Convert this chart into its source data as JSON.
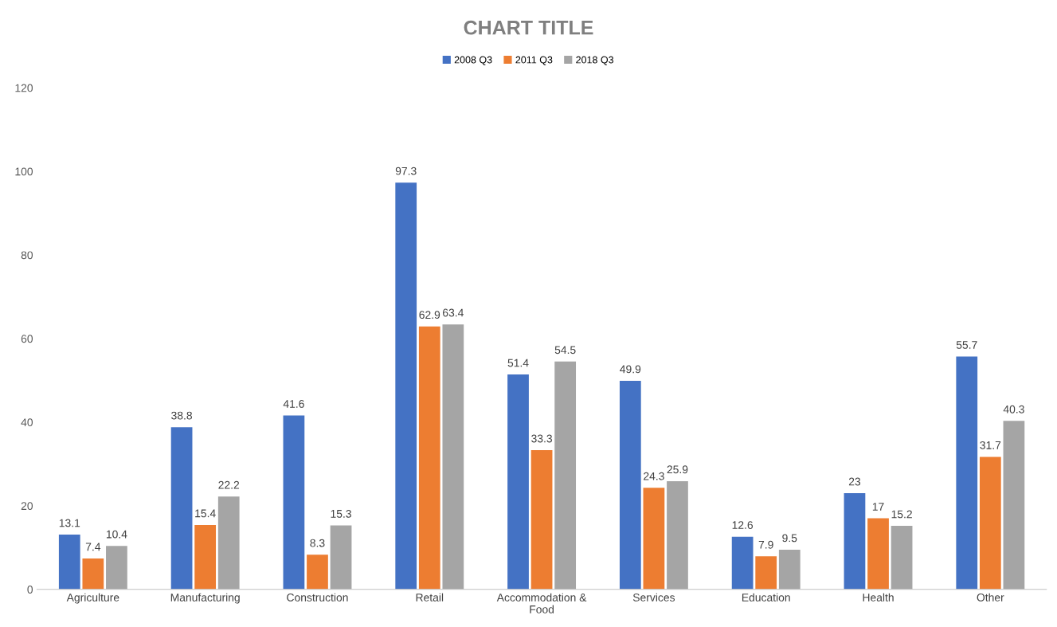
{
  "chart_data": {
    "type": "bar",
    "title": "CHART TITLE",
    "categories": [
      "Agriculture",
      "Manufacturing",
      "Construction",
      "Retail",
      "Accommodation &\nFood",
      "Services",
      "Education",
      "Health",
      "Other"
    ],
    "series": [
      {
        "name": "2008 Q3",
        "color": "#4472c4",
        "values": [
          13.1,
          38.8,
          41.6,
          97.3,
          51.4,
          49.9,
          12.6,
          23,
          55.7
        ]
      },
      {
        "name": "2011 Q3",
        "color": "#ed7d31",
        "values": [
          7.4,
          15.4,
          8.3,
          62.9,
          33.3,
          24.3,
          7.9,
          17,
          31.7
        ]
      },
      {
        "name": "2018 Q3",
        "color": "#a5a5a5",
        "values": [
          10.4,
          22.2,
          15.3,
          63.4,
          54.5,
          25.9,
          9.5,
          15.2,
          40.3
        ]
      }
    ],
    "ylim": [
      0,
      120
    ],
    "yticks": [
      0,
      20,
      40,
      60,
      80,
      100,
      120
    ],
    "data_labels": true,
    "grid": false,
    "legend": "top"
  }
}
